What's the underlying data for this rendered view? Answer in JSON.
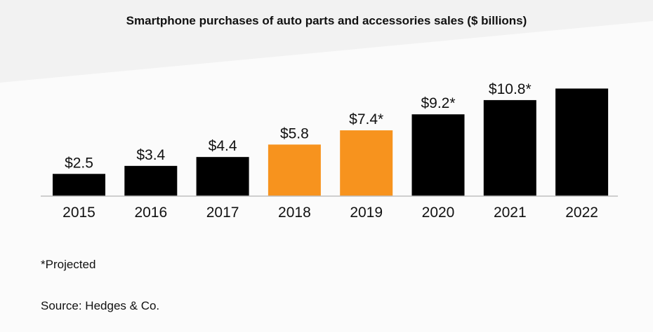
{
  "colors": {
    "background": "#f2f2f2",
    "panel": "#fbfbfb",
    "bar_default": "#000000",
    "bar_highlight": "#f7931e",
    "axis": "#bfbfbf",
    "text": "#111111"
  },
  "chart_data": {
    "type": "bar",
    "title": "Smartphone purchases of auto parts and accessories sales  ($ billions)",
    "xlabel": "",
    "ylabel": "",
    "categories": [
      "2015",
      "2016",
      "2017",
      "2018",
      "2019",
      "2020",
      "2021",
      "2022"
    ],
    "values": [
      2.5,
      3.4,
      4.4,
      5.8,
      7.4,
      9.2,
      10.8,
      12.1
    ],
    "data_labels": [
      "$2.5",
      "$3.4",
      "$4.4",
      "$5.8",
      "$7.4*",
      "$9.2*",
      "$10.8*",
      ""
    ],
    "highlighted": [
      false,
      false,
      false,
      true,
      true,
      false,
      false,
      false
    ],
    "ylim": [
      0,
      13
    ],
    "grid": false,
    "legend": "none"
  },
  "notes": {
    "projected": "*Projected",
    "source": "Source: Hedges & Co."
  }
}
